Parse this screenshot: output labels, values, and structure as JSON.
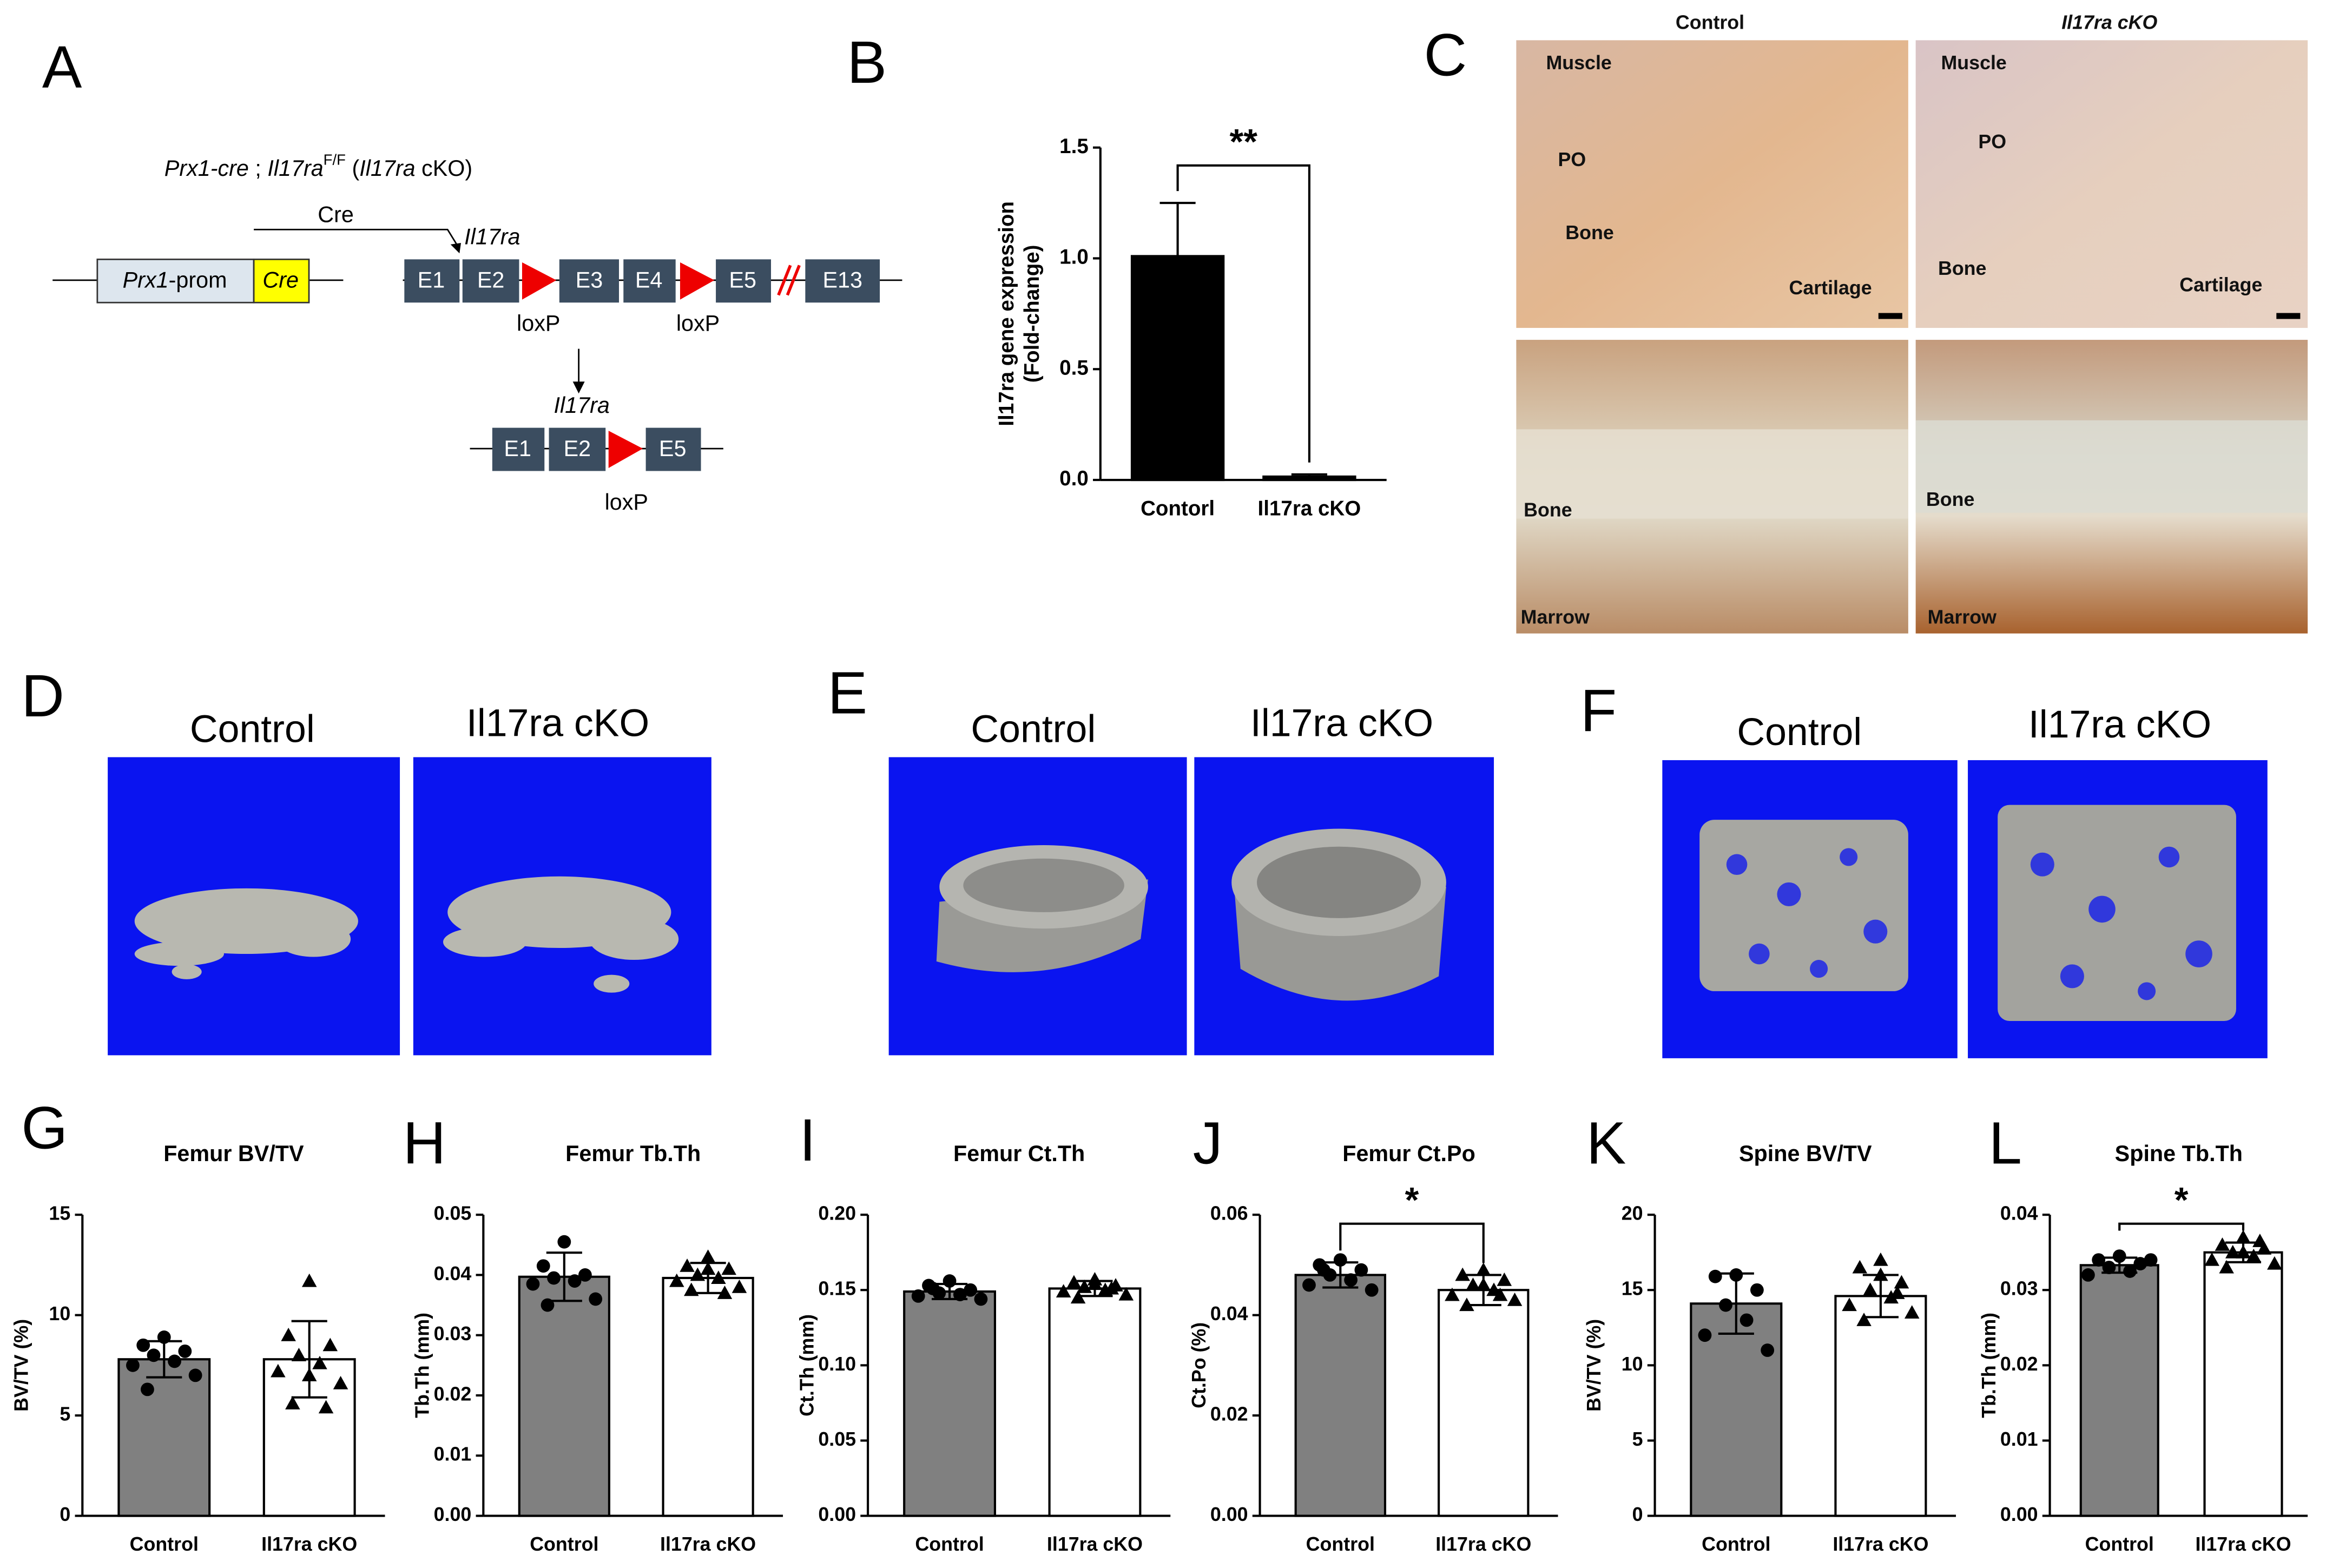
{
  "figure": {
    "panel_letters": [
      "A",
      "B",
      "C",
      "D",
      "E",
      "F",
      "G",
      "H",
      "I",
      "J",
      "K",
      "L"
    ],
    "diagram": {
      "genotype": [
        "Prx1-cre",
        " ; ",
        "Il17ra",
        "F/F",
        " (",
        "Il17ra",
        " cKO)"
      ],
      "cre_arrow": "Cre",
      "promoter": [
        "Prx1",
        "-prom"
      ],
      "cre_box": "Cre",
      "gene": "Il17ra",
      "exons": [
        "E1",
        "E2",
        "E3",
        "E4",
        "E5",
        "E13"
      ],
      "loxp": "loxP",
      "deleted_gene": "Il17ra",
      "deleted_exons": [
        "E1",
        "E2",
        "E5"
      ]
    },
    "histology": {
      "columns": [
        "Control",
        "Il17ra cKO"
      ],
      "top_labels": [
        [
          "Muscle",
          "PO",
          "Bone",
          "Cartilage"
        ],
        [
          "Muscle",
          "PO",
          "Bone",
          "Cartilage"
        ]
      ],
      "bottom_labels": [
        [
          "Bone",
          "Marrow"
        ],
        [
          "Bone",
          "Marrow"
        ]
      ]
    },
    "microct": [
      {
        "labels": [
          "Control",
          "Il17ra cKO"
        ]
      },
      {
        "labels": [
          "Control",
          "Il17ra cKO"
        ]
      },
      {
        "labels": [
          "Control",
          "Il17ra cKO"
        ]
      }
    ]
  },
  "chart_data": [
    {
      "type": "bar",
      "categories": [
        "Contorl",
        "Il17ra cKO"
      ],
      "values": [
        1.01,
        0.015
      ],
      "errors": [
        0.24,
        0.01
      ],
      "error_bars": "upper",
      "colors": [
        "#000000",
        "#000000"
      ],
      "y_label": [
        "Il17ra gene expression",
        "(Fold-change)"
      ],
      "ylim": [
        0,
        1.5
      ],
      "yticks": [
        {
          "value": 0,
          "label": "0.0"
        },
        0.5,
        {
          "value": 1,
          "label": "1.0"
        },
        1.5
      ],
      "significance": "**"
    },
    {
      "type": "bar_dot",
      "title": "Femur BV/TV",
      "y_label": [
        "BV/TV (%)"
      ],
      "categories": [
        "Control",
        "Il17ra cKO"
      ],
      "values": [
        7.8,
        7.8
      ],
      "errors": [
        0.9,
        1.9
      ],
      "error_bars": "both",
      "colors": [
        "#808080",
        "#ffffff"
      ],
      "markers": [
        "circle",
        "triangle"
      ],
      "points": [
        [
          8.9,
          8.5,
          8.2,
          8.0,
          7.7,
          7.5,
          7.0,
          6.3
        ],
        [
          11.7,
          9.0,
          8.5,
          8.0,
          7.6,
          7.2,
          6.6,
          5.6,
          5.4,
          7.0
        ]
      ],
      "ylim": [
        0,
        15
      ],
      "yticks": [
        0,
        5,
        10,
        15
      ]
    },
    {
      "type": "bar_dot",
      "title": "Femur Tb.Th",
      "y_label": [
        "Tb.Th (mm)"
      ],
      "categories": [
        "Control",
        "Il17ra cKO"
      ],
      "values": [
        0.0397,
        0.0395
      ],
      "errors": [
        0.004,
        0.0025
      ],
      "error_bars": "both",
      "colors": [
        "#808080",
        "#ffffff"
      ],
      "markers": [
        "circle",
        "triangle"
      ],
      "points": [
        [
          0.0455,
          0.0415,
          0.04,
          0.0395,
          0.039,
          0.0385,
          0.036,
          0.035
        ],
        [
          0.043,
          0.0415,
          0.041,
          0.04,
          0.0395,
          0.039,
          0.038,
          0.0375,
          0.037,
          0.041
        ]
      ],
      "ylim": [
        0,
        0.05
      ],
      "yticks": [
        {
          "value": 0,
          "label": "0.00"
        },
        0.01,
        0.02,
        0.03,
        0.04,
        0.05
      ]
    },
    {
      "type": "bar_dot",
      "title": "Femur Ct.Th",
      "y_label": [
        "Ct.Th (mm)"
      ],
      "categories": [
        "Control",
        "Il17ra cKO"
      ],
      "values": [
        0.149,
        0.151
      ],
      "errors": [
        0.005,
        0.005
      ],
      "error_bars": "both",
      "colors": [
        "#808080",
        "#ffffff"
      ],
      "markers": [
        "circle",
        "triangle"
      ],
      "points": [
        [
          0.156,
          0.153,
          0.15,
          0.148,
          0.147,
          0.146,
          0.144,
          0.151
        ],
        [
          0.157,
          0.155,
          0.153,
          0.152,
          0.15,
          0.149,
          0.147,
          0.145,
          0.151,
          0.154
        ]
      ],
      "ylim": [
        0,
        0.2
      ],
      "yticks": [
        {
          "value": 0,
          "label": "0.00"
        },
        0.05,
        {
          "value": 0.1,
          "label": "0.10"
        },
        0.15,
        {
          "value": 0.2,
          "label": "0.20"
        }
      ]
    },
    {
      "type": "bar_dot",
      "title": "Femur Ct.Po",
      "y_label": [
        "Ct.Po (%)"
      ],
      "categories": [
        "Control",
        "Il17ra cKO"
      ],
      "values": [
        0.048,
        0.045
      ],
      "errors": [
        0.0025,
        0.003
      ],
      "error_bars": "both",
      "colors": [
        "#808080",
        "#ffffff"
      ],
      "markers": [
        "circle",
        "triangle"
      ],
      "points": [
        [
          0.051,
          0.05,
          0.049,
          0.048,
          0.047,
          0.046,
          0.045,
          0.049
        ],
        [
          0.049,
          0.048,
          0.047,
          0.046,
          0.045,
          0.044,
          0.043,
          0.042,
          0.044,
          0.046
        ]
      ],
      "ylim": [
        0,
        0.06
      ],
      "yticks": [
        {
          "value": 0,
          "label": "0.00"
        },
        0.02,
        0.04,
        0.06
      ],
      "significance": "*"
    },
    {
      "type": "bar_dot",
      "title": "Spine BV/TV",
      "y_label": [
        "BV/TV (%)"
      ],
      "categories": [
        "Control",
        "Il17ra cKO"
      ],
      "values": [
        14.1,
        14.6
      ],
      "errors": [
        2.0,
        1.4
      ],
      "error_bars": "both",
      "colors": [
        "#808080",
        "#ffffff"
      ],
      "markers": [
        "circle",
        "triangle"
      ],
      "points": [
        [
          16.0,
          15.9,
          15.0,
          14.0,
          13.0,
          12.0,
          11.0
        ],
        [
          17.0,
          16.5,
          15.5,
          15.0,
          14.5,
          14.0,
          13.5,
          13.0,
          14.8,
          16.0
        ]
      ],
      "ylim": [
        0,
        20
      ],
      "yticks": [
        0,
        5,
        10,
        15,
        20
      ]
    },
    {
      "type": "bar_dot",
      "title": "Spine Tb.Th",
      "y_label": [
        "Tb.Th (mm)"
      ],
      "categories": [
        "Control",
        "Il17ra cKO"
      ],
      "values": [
        0.0333,
        0.035
      ],
      "errors": [
        0.001,
        0.0013
      ],
      "error_bars": "both",
      "colors": [
        "#808080",
        "#ffffff"
      ],
      "markers": [
        "circle",
        "triangle"
      ],
      "points": [
        [
          0.0345,
          0.034,
          0.0335,
          0.033,
          0.0325,
          0.032,
          0.034
        ],
        [
          0.037,
          0.036,
          0.0355,
          0.035,
          0.0345,
          0.034,
          0.0335,
          0.033,
          0.0365,
          0.035
        ]
      ],
      "ylim": [
        0,
        0.04
      ],
      "yticks": [
        {
          "value": 0,
          "label": "0.00"
        },
        0.01,
        0.02,
        0.03,
        0.04
      ],
      "significance": "*"
    }
  ]
}
